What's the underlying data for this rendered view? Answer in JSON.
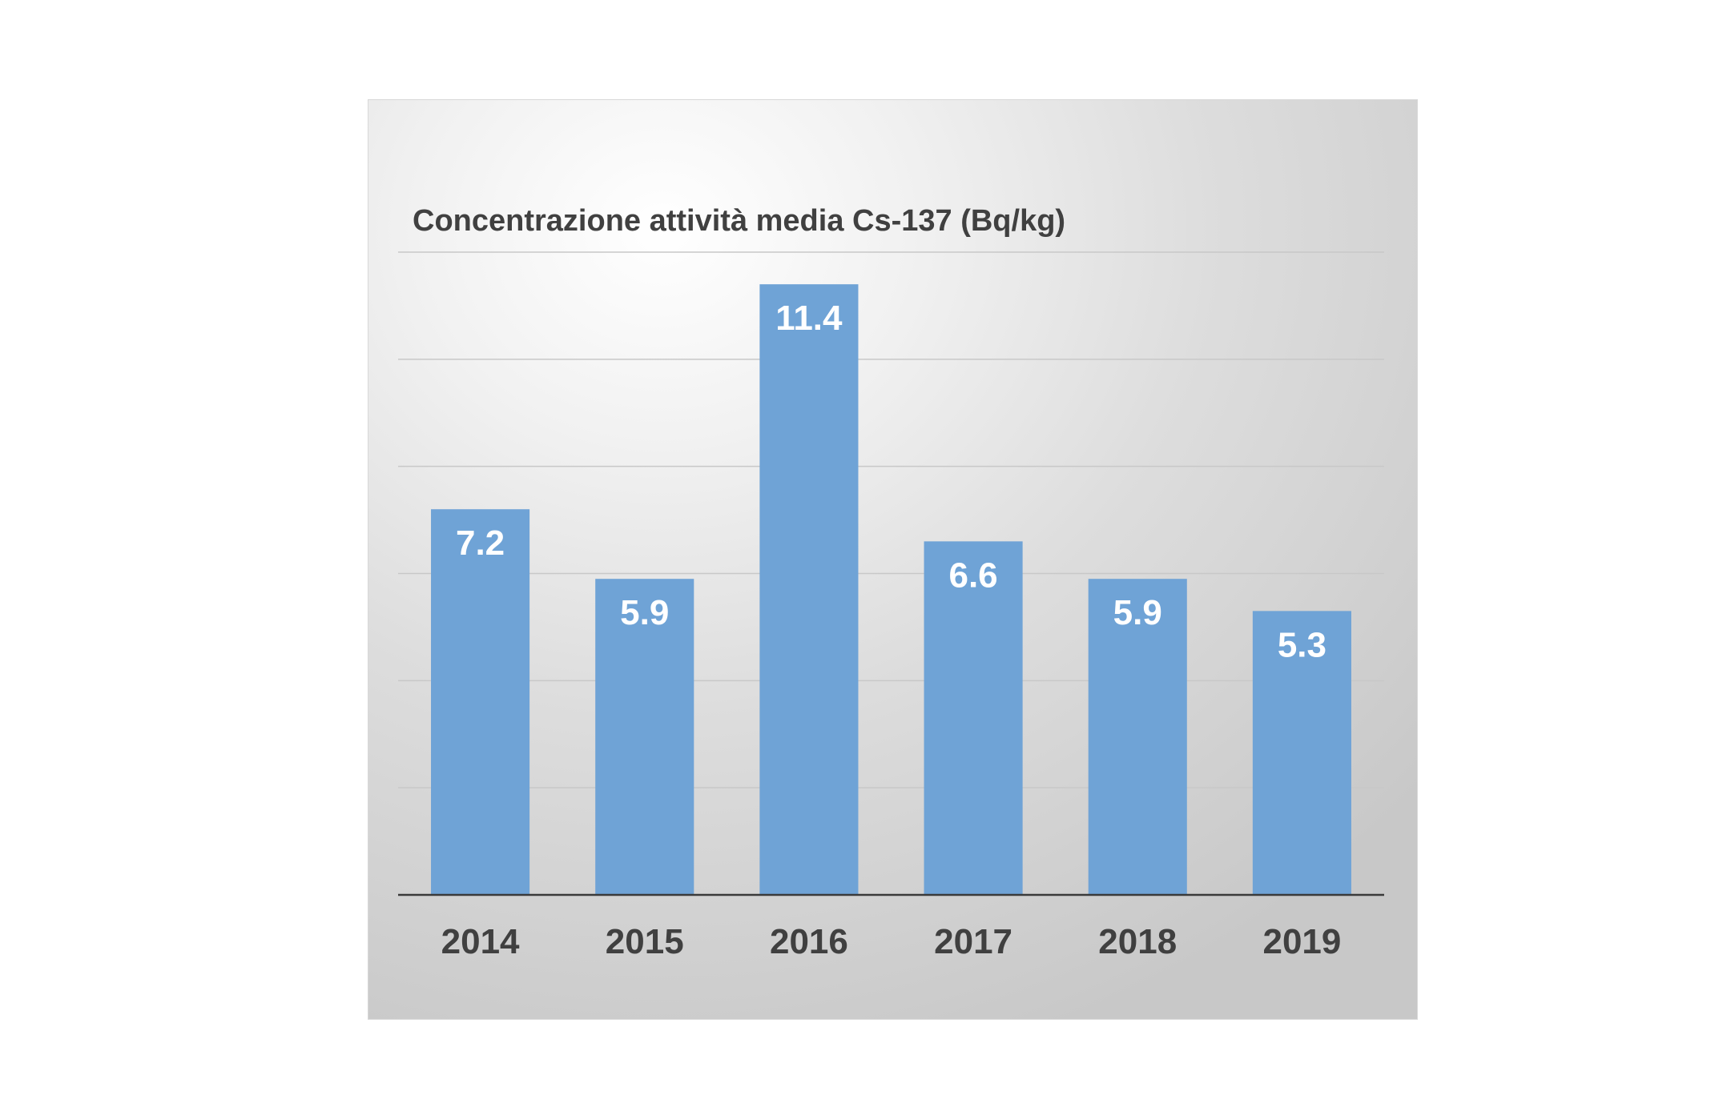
{
  "chart_data": {
    "type": "bar",
    "title": "Concentrazione attività media Cs-137 (Bq/kg)",
    "xlabel": "",
    "ylabel": "",
    "categories": [
      "2014",
      "2015",
      "2016",
      "2017",
      "2018",
      "2019"
    ],
    "values": [
      7.2,
      5.9,
      11.4,
      6.6,
      5.9,
      5.3
    ],
    "data_labels": [
      "7.2",
      "5.9",
      "11.4",
      "6.6",
      "5.9",
      "5.3"
    ],
    "ylim": [
      0,
      12
    ],
    "gridlines": true,
    "legend": "none",
    "bar_color": "#6fa3d6",
    "gridline_color": "#c8c8c8",
    "axis_color": "#3a3a3a"
  }
}
